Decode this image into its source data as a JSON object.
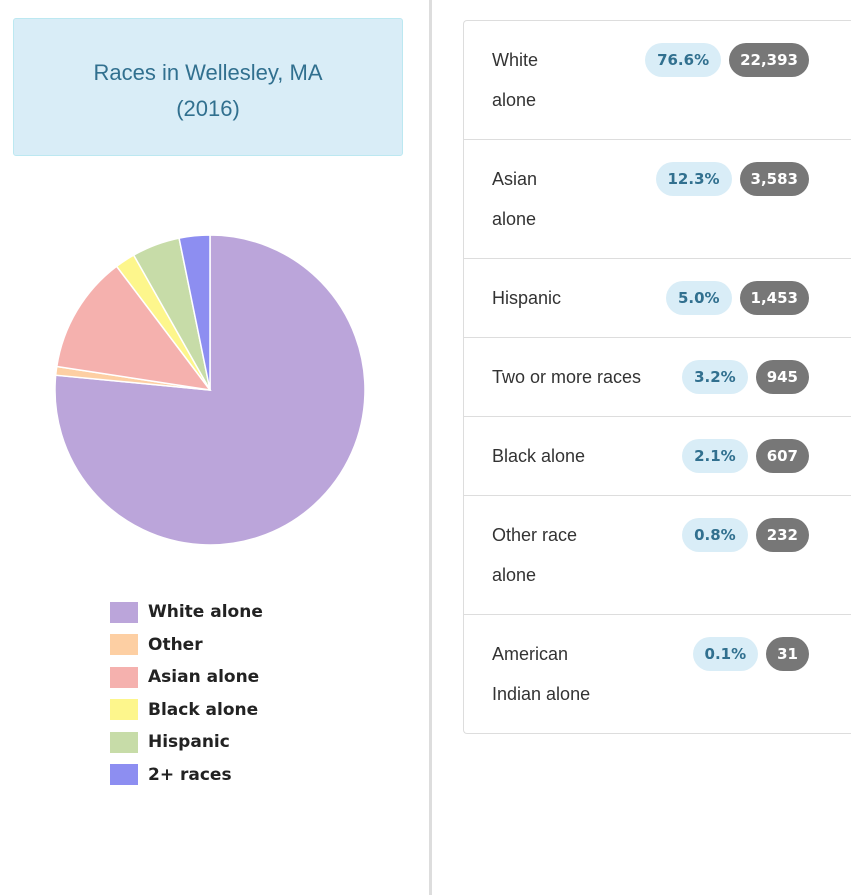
{
  "header": {
    "title": "Races in Wellesley, MA (2016)"
  },
  "chart_data": {
    "type": "pie",
    "categories": [
      "White alone",
      "Other",
      "Asian alone",
      "Black alone",
      "Hispanic",
      "2+ races"
    ],
    "values": [
      76.6,
      0.9,
      12.3,
      2.1,
      5.0,
      3.2
    ],
    "colors": [
      "#bba5da",
      "#fdcfa3",
      "#f5b1ae",
      "#fdf68c",
      "#c7dca8",
      "#8d8ef1"
    ],
    "legend": "bottom"
  },
  "table": {
    "rows": [
      [
        "White alone",
        "76.6%",
        "22,393"
      ],
      [
        "Asian alone",
        "12.3%",
        "3,583"
      ],
      [
        "Hispanic",
        "5.0%",
        "1,453"
      ],
      [
        "Two or more races",
        "3.2%",
        "945"
      ],
      [
        "Black alone",
        "2.1%",
        "607"
      ],
      [
        "Other race alone",
        "0.8%",
        "232"
      ],
      [
        "American Indian alone",
        "0.1%",
        "31"
      ]
    ]
  }
}
